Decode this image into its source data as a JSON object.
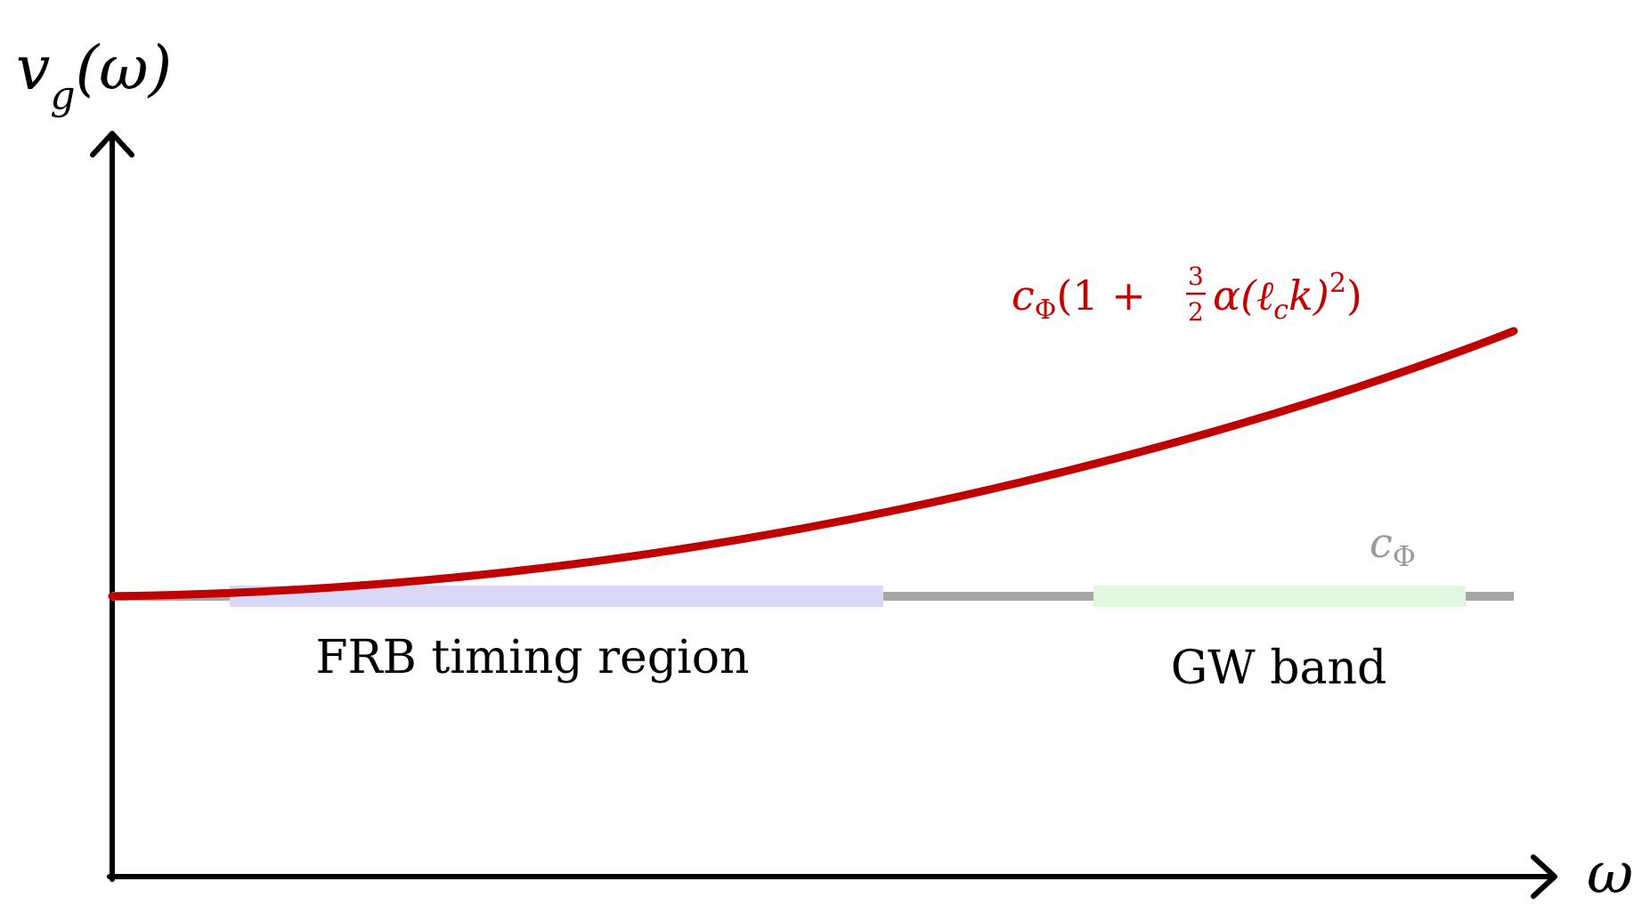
{
  "labels": {
    "y_axis": {
      "v": "v",
      "sub": "g",
      "arg": "(ω)"
    },
    "x_axis": "ω",
    "baseline": {
      "c": "c",
      "sub": "Φ"
    },
    "curve": {
      "c": "c",
      "sub": "Φ",
      "open": "(1 + ",
      "frac_num": "3",
      "frac_den": "2",
      "alpha": "α(",
      "ell": "ℓ",
      "ell_sub": "c",
      "k": "k)",
      "exp": "2",
      "close": ")"
    },
    "frb_region": "FRB timing region",
    "gw_band": "GW band"
  },
  "colors": {
    "axis": "#000000",
    "curve": "#c00000",
    "baseline": "#a6a6a6",
    "frb_band": "#d9d9f7",
    "gw_band": "#e0f8e0",
    "text": "#000000",
    "baseline_label": "#9a9a9a"
  }
}
